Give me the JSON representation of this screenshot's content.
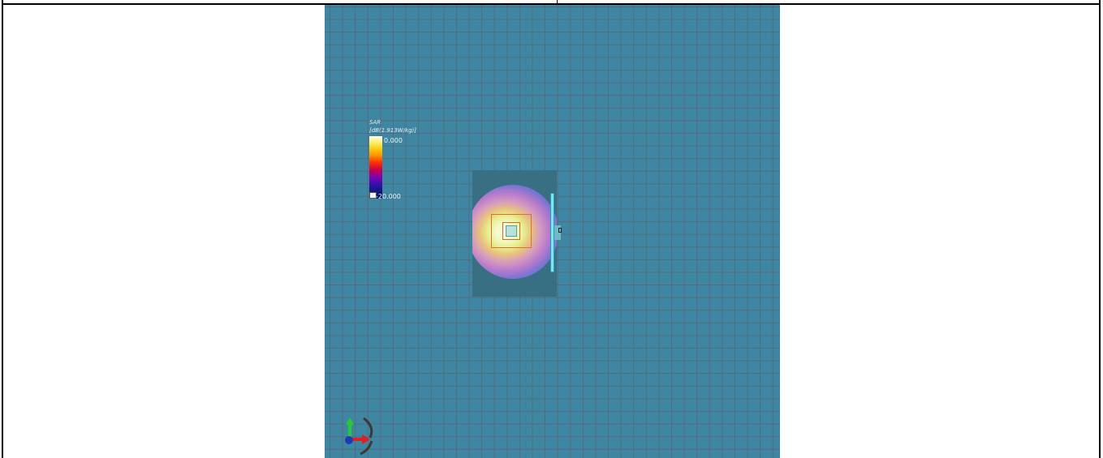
{
  "legend": {
    "title": "SAR",
    "unit": "[dB(1.913W/kg)]",
    "max_label": "0.000",
    "min_label": "-20.000"
  },
  "colors": {
    "background_grid": "#3f86a2",
    "phantom": "#386f82",
    "dipole": "#7fe3f0"
  },
  "icons": {
    "axis_triad": "xyz-axis-triad-icon",
    "colormap_toggle": "colormap-toggle-icon"
  }
}
